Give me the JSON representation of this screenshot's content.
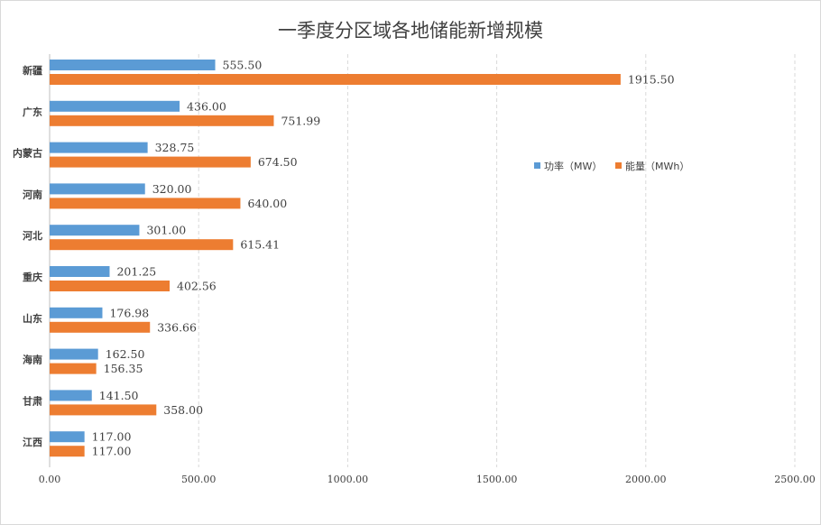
{
  "chart_data": {
    "type": "bar",
    "orientation": "horizontal",
    "title": "一季度分区域各地储能新增规模",
    "categories": [
      "新疆",
      "广东",
      "内蒙古",
      "河南",
      "河北",
      "重庆",
      "山东",
      "海南",
      "甘肃",
      "江西"
    ],
    "series": [
      {
        "name": "功率（MW）",
        "color": "#5b9bd5",
        "values": [
          555.5,
          436.0,
          328.75,
          320.0,
          301.0,
          201.25,
          176.98,
          162.5,
          141.5,
          117.0
        ],
        "labels": [
          "555.50",
          "436.00",
          "328.75",
          "320.00",
          "301.00",
          "201.25",
          "176.98",
          "162.50",
          "141.50",
          "117.00"
        ]
      },
      {
        "name": "能量（MWh）",
        "color": "#ed7d31",
        "values": [
          1915.5,
          751.99,
          674.5,
          640.0,
          615.41,
          402.56,
          336.66,
          156.35,
          358.0,
          117.0
        ],
        "labels": [
          "1915.50",
          "751.99",
          "674.50",
          "640.00",
          "615.41",
          "402.56",
          "336.66",
          "156.35",
          "358.00",
          "117.00"
        ]
      }
    ],
    "xlim": [
      0,
      2500
    ],
    "xticks": [
      0,
      500,
      1000,
      1500,
      2000,
      2500
    ],
    "xtick_labels": [
      "0.00",
      "500.00",
      "1000.00",
      "1500.00",
      "2000.00",
      "2500.00"
    ],
    "grid": "vertical dashed",
    "legend": "right"
  }
}
